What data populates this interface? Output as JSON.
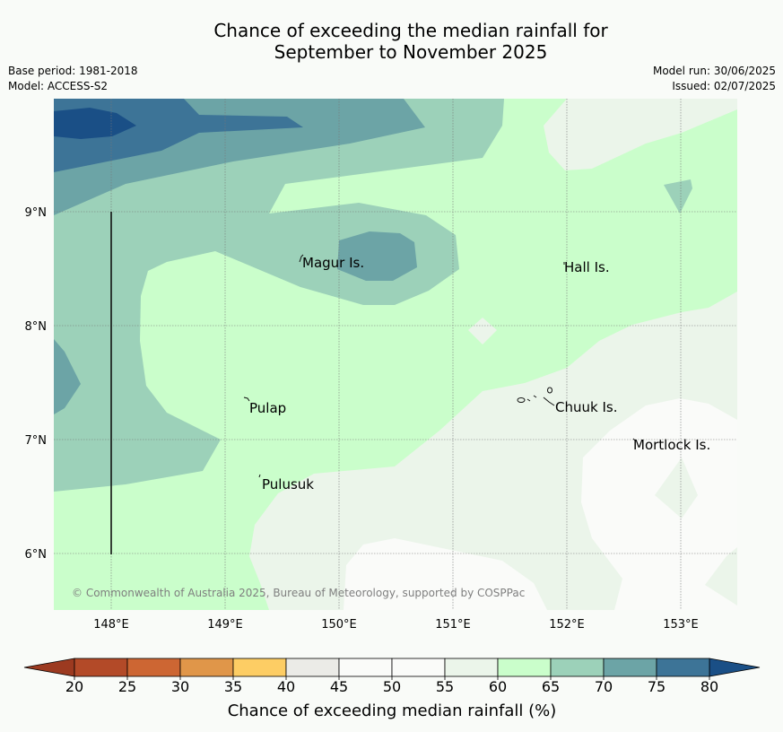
{
  "header": {
    "title_line1": "Chance of exceeding the median rainfall for",
    "title_line2": "September to November 2025",
    "base_period": "Base period: 1981-2018",
    "model": "Model: ACCESS-S2",
    "model_run": "Model run: 30/06/2025",
    "issued": "Issued: 02/07/2025"
  },
  "map": {
    "lon_labels": [
      "148°E",
      "149°E",
      "150°E",
      "151°E",
      "152°E",
      "153°E"
    ],
    "lat_labels": [
      "9°N",
      "8°N",
      "7°N",
      "6°N"
    ],
    "places": [
      "Magur Is.",
      "Hall Is.",
      "Pulap",
      "Chuuk Is.",
      "Mortlock Is.",
      "Pulusuk"
    ],
    "copyright": "© Commonwealth of Australia 2025, Bureau of Meteorology, supported by COSPPac"
  },
  "colorbar": {
    "ticks": [
      "20",
      "25",
      "30",
      "35",
      "40",
      "45",
      "50",
      "55",
      "60",
      "65",
      "70",
      "75",
      "80"
    ],
    "colors": [
      "#b34a28",
      "#cd6633",
      "#e09649",
      "#fdcd64",
      "#ebebe7",
      "#fafbf9",
      "#fafbf9",
      "#ebf5ea",
      "#cafecb",
      "#9cd1b9",
      "#6ca4a6",
      "#3d7497"
    ],
    "under_color": "#9c3a20",
    "over_color": "#1a4f86",
    "label": "Chance of exceeding median rainfall (%)"
  }
}
